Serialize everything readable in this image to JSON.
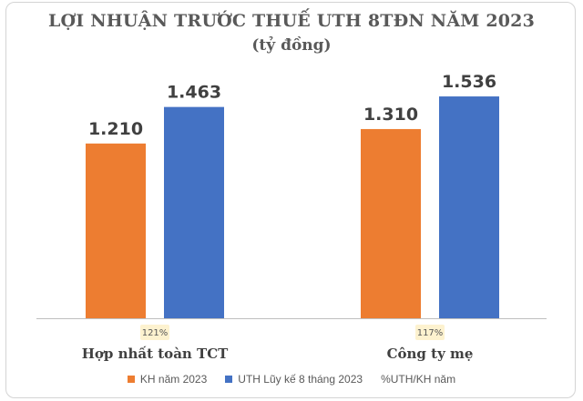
{
  "chart_data": {
    "type": "bar",
    "title": "LỢI NHUẬN TRƯỚC THUẾ UTH 8TĐN NĂM 2023",
    "subtitle": "(tỷ đồng)",
    "categories": [
      "Hợp nhất toàn TCT",
      "Công ty mẹ"
    ],
    "series": [
      {
        "name": "KH năm 2023",
        "values": [
          1210,
          1310
        ],
        "labels": [
          "1.210",
          "1.310"
        ],
        "color": "#ED7D31"
      },
      {
        "name": "UTH Lũy kế 8 tháng 2023",
        "values": [
          1463,
          1536
        ],
        "labels": [
          "1.463",
          "1.536"
        ],
        "color": "#4472C4"
      }
    ],
    "ratio_series": {
      "name": "%UTH/KH năm",
      "labels": [
        "121%",
        "117%"
      ],
      "values": [
        121,
        117
      ]
    },
    "ylim": [
      0,
      1700
    ],
    "grid": false,
    "legend_position": "bottom"
  },
  "colors": {
    "baseline": "#bfbfbf",
    "ratio_bg": "#fdf2cf"
  }
}
